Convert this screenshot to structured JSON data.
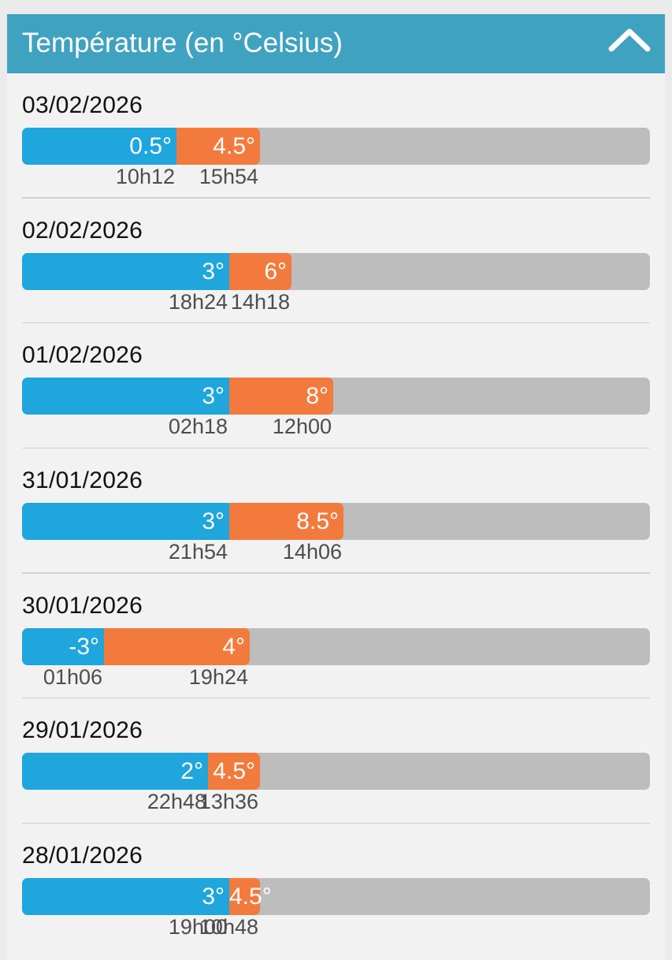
{
  "header": {
    "title": "Température (en °Celsius)",
    "collapse_icon": "chevron-up-icon"
  },
  "colors": {
    "header": "#3fa2c0",
    "min_bar": "#1ea6dd",
    "max_bar": "#f37a3d",
    "track": "#bdbdbd"
  },
  "days": [
    {
      "date": "03/02/2026",
      "min": 0.5,
      "min_label": "0.5°",
      "min_time": "10h12",
      "max": 4.5,
      "max_label": "4.5°",
      "max_time": "15h54"
    },
    {
      "date": "02/02/2026",
      "min": 3,
      "min_label": "3°",
      "min_time": "18h24",
      "max": 6,
      "max_label": "6°",
      "max_time": "14h18"
    },
    {
      "date": "01/02/2026",
      "min": 3,
      "min_label": "3°",
      "min_time": "02h18",
      "max": 8,
      "max_label": "8°",
      "max_time": "12h00"
    },
    {
      "date": "31/01/2026",
      "min": 3,
      "min_label": "3°",
      "min_time": "21h54",
      "max": 8.5,
      "max_label": "8.5°",
      "max_time": "14h06"
    },
    {
      "date": "30/01/2026",
      "min": -3,
      "min_label": "-3°",
      "min_time": "01h06",
      "max": 4,
      "max_label": "4°",
      "max_time": "19h24"
    },
    {
      "date": "29/01/2026",
      "min": 2,
      "min_label": "2°",
      "min_time": "22h48",
      "max": 4.5,
      "max_label": "4.5°",
      "max_time": "13h36"
    },
    {
      "date": "28/01/2026",
      "min": 3,
      "min_label": "3°",
      "min_time": "19h00",
      "max": 4.5,
      "max_label": "4.5°",
      "max_time": "10h48"
    }
  ]
}
